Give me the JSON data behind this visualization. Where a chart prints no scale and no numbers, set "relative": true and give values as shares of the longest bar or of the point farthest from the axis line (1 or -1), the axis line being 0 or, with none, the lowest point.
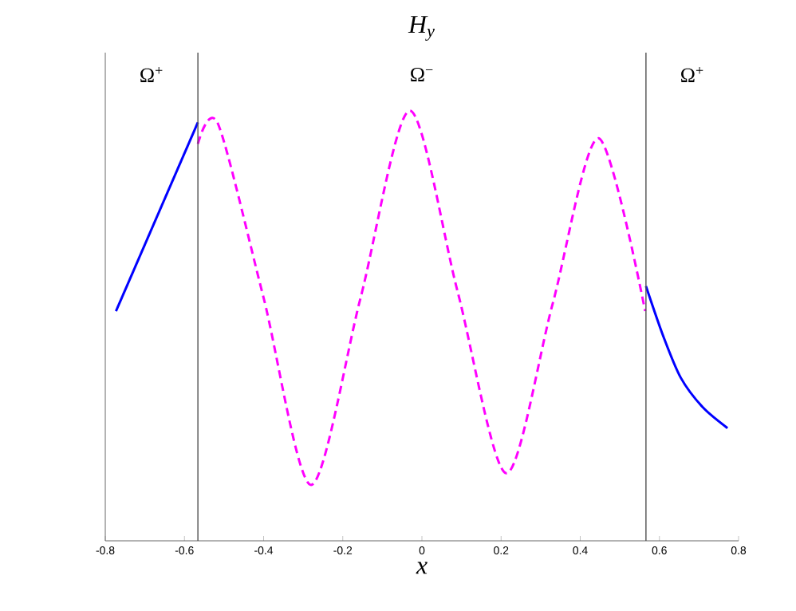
{
  "chart_data": {
    "type": "line",
    "title": "H$_{y}$",
    "xlabel": "x",
    "relative": true,
    "xlim": [
      -0.8,
      0.8
    ],
    "xticks": [
      -0.8,
      -0.6,
      -0.4,
      -0.2,
      0,
      0.2,
      0.4,
      0.6,
      0.8
    ],
    "grid": false,
    "tick_labels": "x",
    "series": [
      {
        "color": "#0000ff",
        "line_style": "solid",
        "x": [
          -0.773,
          -0.566
        ],
        "values": [
          0.534,
          0.973
        ]
      },
      {
        "color": "#ff00ff",
        "line_style": "dashed",
        "x": [
          -0.566,
          -0.515,
          -0.4,
          -0.28,
          -0.155,
          -0.031,
          0.09,
          0.213,
          0.33,
          0.446,
          0.564
        ],
        "values": [
          0.923,
          0.969,
          0.565,
          0.13,
          0.565,
          1.0,
          0.58,
          0.157,
          0.55,
          0.936,
          0.534
        ]
      },
      {
        "color": "#0000ff",
        "line_style": "solid",
        "x": [
          0.566,
          0.61,
          0.654,
          0.71,
          0.772
        ],
        "values": [
          0.592,
          0.475,
          0.379,
          0.31,
          0.262
        ]
      }
    ],
    "ref_lines": [
      {
        "axis": "x",
        "value": -0.566,
        "color": "#505050"
      },
      {
        "axis": "x",
        "value": 0.566,
        "color": "#505050"
      }
    ],
    "annotations": [
      "Ω$^{+}$",
      "Ω$^{−}$",
      "Ω$^{+}$"
    ]
  }
}
